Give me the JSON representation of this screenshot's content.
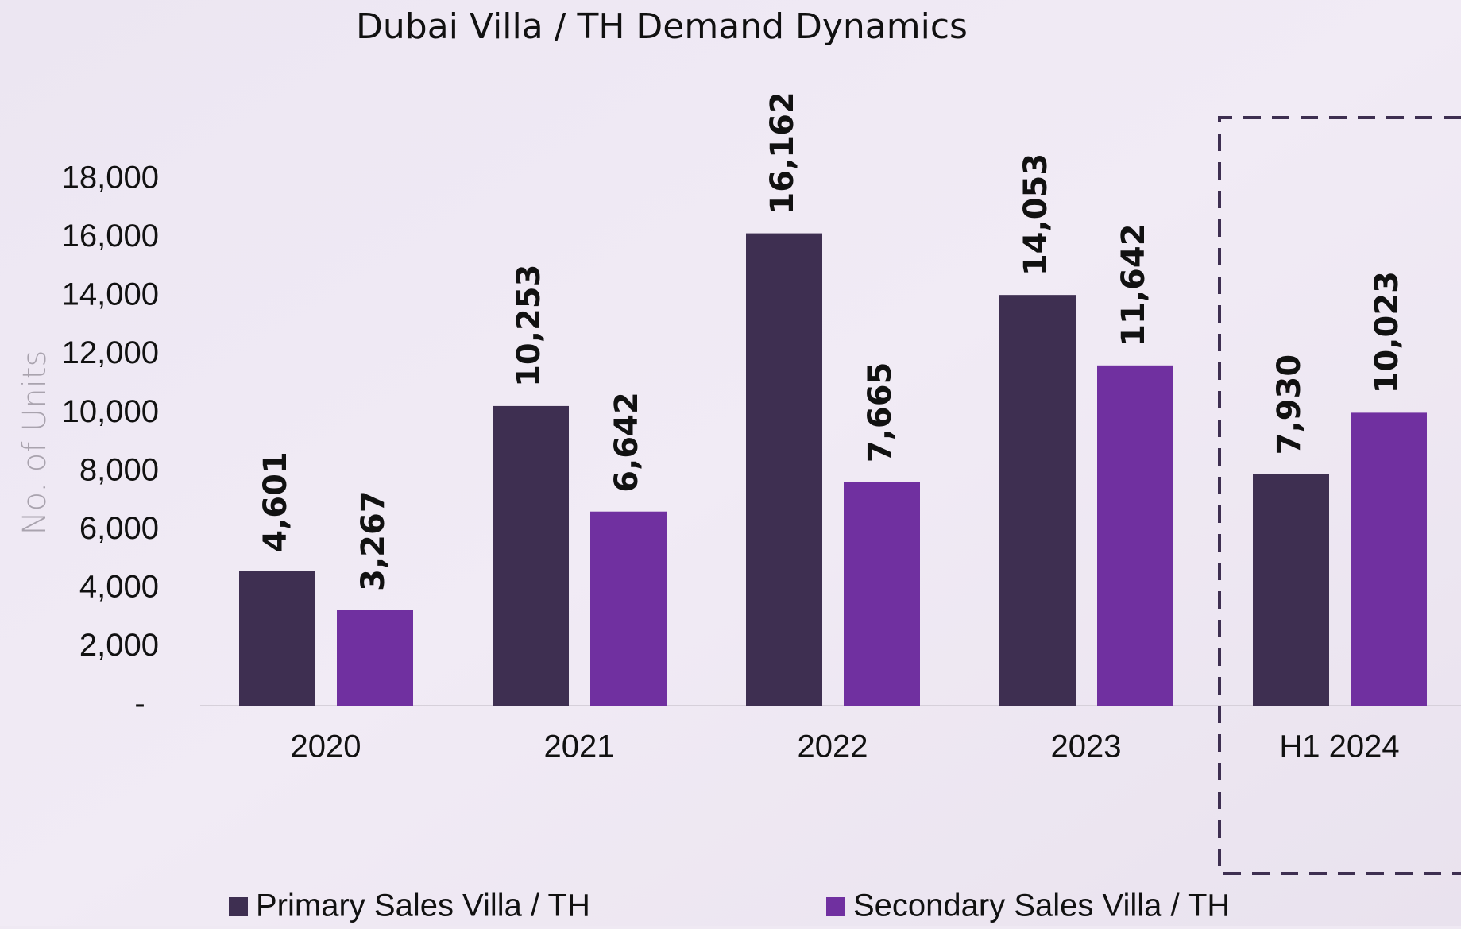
{
  "chart_data": {
    "type": "bar",
    "title": "Dubai Villa / TH Demand Dynamics",
    "y_label": "No. of Units",
    "categories": [
      "2020",
      "2021",
      "2022",
      "2023",
      "H1 2024"
    ],
    "series": [
      {
        "name": "Primary Sales Villa / TH",
        "color": "#3e2f51",
        "values": [
          4601,
          10253,
          16162,
          14053,
          7930
        ],
        "value_labels": [
          "4,601",
          "10,253",
          "16,162",
          "14,053",
          "7,930"
        ]
      },
      {
        "name": "Secondary Sales Villa / TH",
        "color": "#7030a0",
        "values": [
          3267,
          6642,
          7665,
          11642,
          10023
        ],
        "value_labels": [
          "3,267",
          "6,642",
          "7,665",
          "11,642",
          "10,023"
        ]
      }
    ],
    "ylim": [
      0,
      18000
    ],
    "yticks": [
      {
        "value": 0,
        "label": "-"
      },
      {
        "value": 2000,
        "label": "2,000"
      },
      {
        "value": 4000,
        "label": "4,000"
      },
      {
        "value": 6000,
        "label": "6,000"
      },
      {
        "value": 8000,
        "label": "8,000"
      },
      {
        "value": 10000,
        "label": "10,000"
      },
      {
        "value": 12000,
        "label": "12,000"
      },
      {
        "value": 14000,
        "label": "14,000"
      },
      {
        "value": 16000,
        "label": "16,000"
      },
      {
        "value": 18000,
        "label": "18,000"
      }
    ],
    "grid": false,
    "legend": "bottom"
  }
}
